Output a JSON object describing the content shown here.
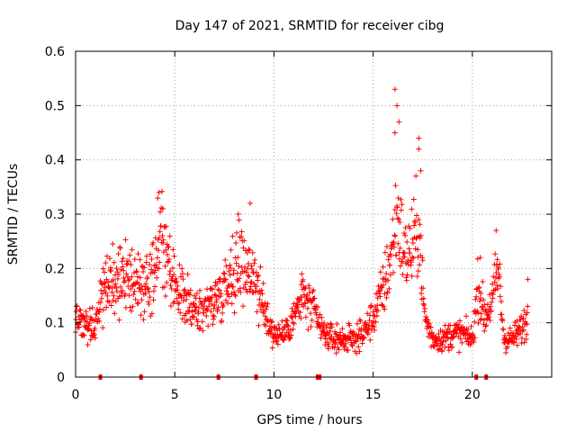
{
  "chart_data": {
    "type": "scatter",
    "title": "Day 147 of 2021, SRMTID for receiver cibg",
    "xlabel": "GPS time / hours",
    "ylabel": "SRMTID / TECUs",
    "xlim": [
      0,
      24
    ],
    "ylim": [
      0,
      0.6
    ],
    "xticks": [
      0,
      5,
      10,
      15,
      20
    ],
    "xtick_labels": [
      "0",
      "5",
      "10",
      "15",
      "20"
    ],
    "yticks": [
      0,
      0.1,
      0.2,
      0.3,
      0.4,
      0.5,
      0.6
    ],
    "ytick_labels": [
      "0",
      "0.1",
      "0.2",
      "0.3",
      "0.4",
      "0.5",
      "0.6"
    ],
    "grid": true,
    "marker": "+",
    "series": [
      {
        "name": "SRMTID",
        "color": "#ff0000",
        "profile": [
          [
            0.0,
            0.11
          ],
          [
            0.5,
            0.1
          ],
          [
            1.0,
            0.09
          ],
          [
            1.4,
            0.16
          ],
          [
            2.0,
            0.18
          ],
          [
            2.5,
            0.19
          ],
          [
            3.0,
            0.17
          ],
          [
            3.5,
            0.16
          ],
          [
            4.0,
            0.19
          ],
          [
            4.3,
            0.28
          ],
          [
            4.6,
            0.2
          ],
          [
            5.0,
            0.16
          ],
          [
            5.5,
            0.14
          ],
          [
            6.0,
            0.12
          ],
          [
            6.5,
            0.13
          ],
          [
            7.0,
            0.14
          ],
          [
            7.5,
            0.17
          ],
          [
            8.0,
            0.2
          ],
          [
            8.5,
            0.21
          ],
          [
            9.0,
            0.19
          ],
          [
            9.5,
            0.12
          ],
          [
            10.0,
            0.08
          ],
          [
            10.5,
            0.08
          ],
          [
            11.0,
            0.11
          ],
          [
            11.5,
            0.15
          ],
          [
            12.0,
            0.12
          ],
          [
            12.5,
            0.08
          ],
          [
            13.0,
            0.07
          ],
          [
            13.5,
            0.07
          ],
          [
            14.0,
            0.07
          ],
          [
            14.5,
            0.08
          ],
          [
            15.0,
            0.11
          ],
          [
            15.5,
            0.16
          ],
          [
            15.9,
            0.22
          ],
          [
            16.2,
            0.3
          ],
          [
            16.6,
            0.22
          ],
          [
            17.0,
            0.24
          ],
          [
            17.3,
            0.28
          ],
          [
            17.6,
            0.11
          ],
          [
            18.0,
            0.07
          ],
          [
            18.5,
            0.07
          ],
          [
            19.0,
            0.08
          ],
          [
            19.5,
            0.08
          ],
          [
            20.0,
            0.07
          ],
          [
            20.3,
            0.17
          ],
          [
            20.6,
            0.11
          ],
          [
            21.0,
            0.14
          ],
          [
            21.3,
            0.2
          ],
          [
            21.6,
            0.07
          ],
          [
            22.0,
            0.07
          ],
          [
            22.5,
            0.09
          ],
          [
            22.8,
            0.11
          ]
        ],
        "spikes": [
          {
            "x": 4.2,
            "y": 0.34
          },
          {
            "x": 4.4,
            "y": 0.31
          },
          {
            "x": 8.2,
            "y": 0.3
          },
          {
            "x": 8.8,
            "y": 0.32
          },
          {
            "x": 11.4,
            "y": 0.19
          },
          {
            "x": 16.1,
            "y": 0.53
          },
          {
            "x": 16.2,
            "y": 0.5
          },
          {
            "x": 16.3,
            "y": 0.47
          },
          {
            "x": 16.1,
            "y": 0.45
          },
          {
            "x": 17.3,
            "y": 0.44
          },
          {
            "x": 17.3,
            "y": 0.42
          },
          {
            "x": 17.4,
            "y": 0.38
          },
          {
            "x": 20.4,
            "y": 0.22
          },
          {
            "x": 21.2,
            "y": 0.27
          },
          {
            "x": 22.8,
            "y": 0.18
          }
        ]
      }
    ],
    "gap_markers_x": [
      1.25,
      3.3,
      7.2,
      9.1,
      12.2,
      12.3,
      20.2,
      20.7
    ]
  }
}
